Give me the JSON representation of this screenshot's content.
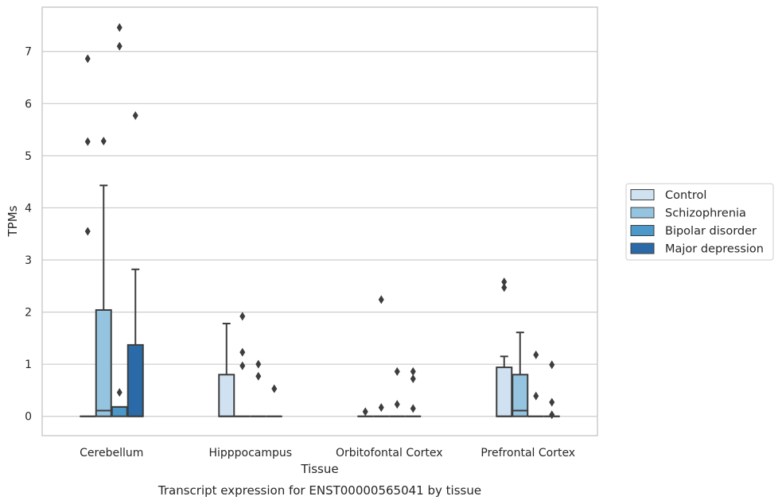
{
  "chart_data": {
    "type": "box",
    "title": "Transcript expression for ENST00000565041 by tissue",
    "xlabel": "Tissue",
    "ylabel": "TPMs",
    "ylim": [
      -0.37,
      7.85
    ],
    "yticks": [
      0,
      1,
      2,
      3,
      4,
      5,
      6,
      7
    ],
    "grid": true,
    "legend_position": "right",
    "categories": [
      "Cerebellum",
      "Hipppocampus",
      "Orbitofontal Cortex",
      "Prefrontal Cortex"
    ],
    "series": [
      {
        "name": "Control",
        "color": "#d0e1f2",
        "boxes": [
          {
            "q1": 0,
            "median": 0,
            "q3": 0,
            "whisker_low": 0,
            "whisker_high": 0,
            "outliers": [
              3.55,
              5.27,
              6.86
            ]
          },
          {
            "q1": 0,
            "median": 0,
            "q3": 0.8,
            "whisker_low": 0,
            "whisker_high": 1.78,
            "outliers": []
          },
          {
            "q1": 0,
            "median": 0,
            "q3": 0,
            "whisker_low": 0,
            "whisker_high": 0,
            "outliers": [
              0.09
            ]
          },
          {
            "q1": 0,
            "median": 0,
            "q3": 0.94,
            "whisker_low": 0,
            "whisker_high": 1.15,
            "outliers": [
              2.47,
              2.58
            ]
          }
        ]
      },
      {
        "name": "Schizophrenia",
        "color": "#94c4df",
        "boxes": [
          {
            "q1": 0,
            "median": 0.11,
            "q3": 2.04,
            "whisker_low": 0,
            "whisker_high": 4.43,
            "outliers": [
              5.28
            ]
          },
          {
            "q1": 0,
            "median": 0,
            "q3": 0,
            "whisker_low": 0,
            "whisker_high": 0,
            "outliers": [
              0.97,
              1.23,
              1.92
            ]
          },
          {
            "q1": 0,
            "median": 0,
            "q3": 0,
            "whisker_low": 0,
            "whisker_high": 0,
            "outliers": [
              0.17,
              2.24
            ]
          },
          {
            "q1": 0,
            "median": 0.11,
            "q3": 0.8,
            "whisker_low": 0,
            "whisker_high": 1.61,
            "outliers": []
          }
        ]
      },
      {
        "name": "Bipolar disorder",
        "color": "#4b98c9",
        "boxes": [
          {
            "q1": 0,
            "median": 0.18,
            "q3": 0.18,
            "whisker_low": 0,
            "whisker_high": 0.18,
            "outliers": [
              0.46,
              7.1,
              7.46
            ]
          },
          {
            "q1": 0,
            "median": 0,
            "q3": 0,
            "whisker_low": 0,
            "whisker_high": 0,
            "outliers": [
              0.77,
              1.0
            ]
          },
          {
            "q1": 0,
            "median": 0,
            "q3": 0,
            "whisker_low": 0,
            "whisker_high": 0,
            "outliers": [
              0.23,
              0.86
            ]
          },
          {
            "q1": 0,
            "median": 0,
            "q3": 0,
            "whisker_low": 0,
            "whisker_high": 0,
            "outliers": [
              0.39,
              1.18
            ]
          }
        ]
      },
      {
        "name": "Major depression",
        "color": "#2b6aa8",
        "boxes": [
          {
            "q1": 0,
            "median": 0,
            "q3": 1.37,
            "whisker_low": 0,
            "whisker_high": 2.82,
            "outliers": [
              5.77
            ]
          },
          {
            "q1": 0,
            "median": 0,
            "q3": 0,
            "whisker_low": 0,
            "whisker_high": 0,
            "outliers": [
              0.53
            ]
          },
          {
            "q1": 0,
            "median": 0,
            "q3": 0,
            "whisker_low": 0,
            "whisker_high": 0,
            "outliers": [
              0.15,
              0.72,
              0.86
            ]
          },
          {
            "q1": 0,
            "median": 0,
            "q3": 0,
            "whisker_low": 0,
            "whisker_high": 0,
            "outliers": [
              0.03,
              0.27,
              0.99
            ]
          }
        ]
      }
    ]
  }
}
